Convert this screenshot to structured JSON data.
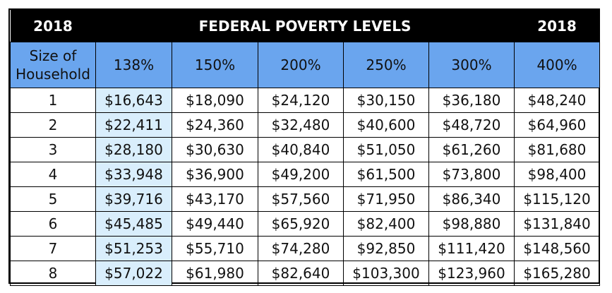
{
  "title_row": {
    "left_year": "2018",
    "title": "FEDERAL POVERTY LEVELS",
    "right_year": "2018"
  },
  "header": {
    "size_label_line1": "Size of",
    "size_label_line2": "Household",
    "percents": [
      "138%",
      "150%",
      "200%",
      "250%",
      "300%",
      "400%"
    ]
  },
  "rows": [
    {
      "size": "1",
      "values": [
        "$16,643",
        "$18,090",
        "$24,120",
        "$30,150",
        "$36,180",
        "$48,240"
      ]
    },
    {
      "size": "2",
      "values": [
        "$22,411",
        "$24,360",
        "$32,480",
        "$40,600",
        "$48,720",
        "$64,960"
      ]
    },
    {
      "size": "3",
      "values": [
        "$28,180",
        "$30,630",
        "$40,840",
        "$51,050",
        "$61,260",
        "$81,680"
      ]
    },
    {
      "size": "4",
      "values": [
        "$33,948",
        "$36,900",
        "$49,200",
        "$61,500",
        "$73,800",
        "$98,400"
      ]
    },
    {
      "size": "5",
      "values": [
        "$39,716",
        "$43,170",
        "$57,560",
        "$71,950",
        "$86,340",
        "$115,120"
      ]
    },
    {
      "size": "6",
      "values": [
        "$45,485",
        "$49,440",
        "$65,920",
        "$82,400",
        "$98,880",
        "$131,840"
      ]
    },
    {
      "size": "7",
      "values": [
        "$51,253",
        "$55,710",
        "$74,280",
        "$92,850",
        "$111,420",
        "$148,560"
      ]
    },
    {
      "size": "8",
      "values": [
        "$57,022",
        "$61,980",
        "$82,640",
        "$103,300",
        "$123,960",
        "$165,280"
      ]
    }
  ],
  "colors": {
    "title_bg": "#000000",
    "header_bg": "#6aa5ee",
    "highlight_col_bg": "#d9eefc"
  }
}
